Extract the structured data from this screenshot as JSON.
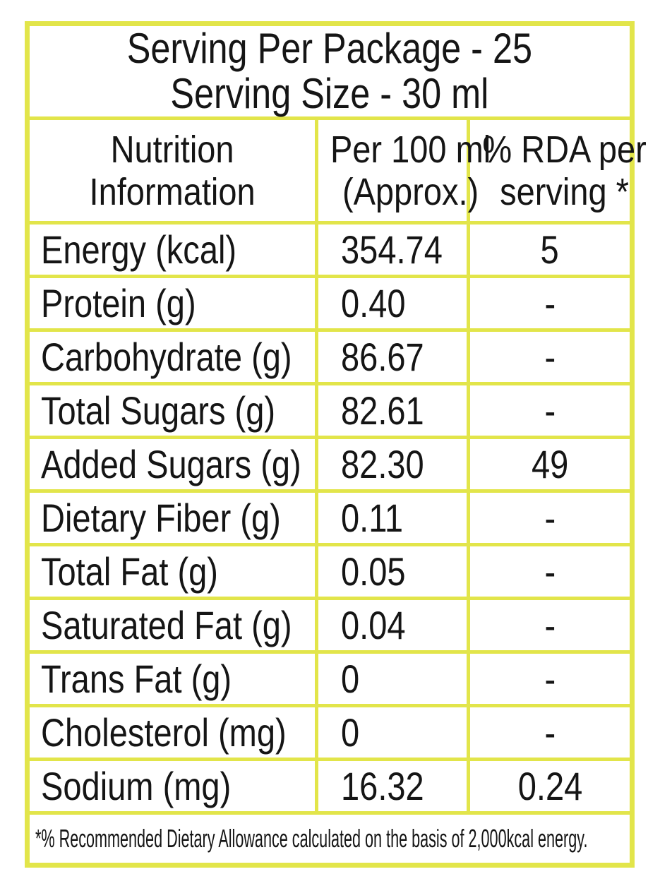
{
  "colors": {
    "border": "#e2e54a",
    "text": "#151515",
    "background": "#ffffff"
  },
  "title": {
    "line1": "Serving Per Package - 25",
    "line2": "Serving Size - 30 ml"
  },
  "columns": {
    "c1": {
      "line1": "Nutrition",
      "line2": "Information"
    },
    "c2": {
      "line1": "Per 100 ml",
      "line2": "(Approx.)"
    },
    "c3": {
      "line1": "% RDA per",
      "line2": "serving *"
    }
  },
  "rows": [
    {
      "label": "Energy (kcal)",
      "per_100ml": "354.74",
      "rda_percent": "5"
    },
    {
      "label": "Protein (g)",
      "per_100ml": "0.40",
      "rda_percent": "-"
    },
    {
      "label": "Carbohydrate (g)",
      "per_100ml": "86.67",
      "rda_percent": "-"
    },
    {
      "label": "Total Sugars (g)",
      "per_100ml": "82.61",
      "rda_percent": "-"
    },
    {
      "label": "Added Sugars (g)",
      "per_100ml": "82.30",
      "rda_percent": "49"
    },
    {
      "label": "Dietary Fiber (g)",
      "per_100ml": "0.11",
      "rda_percent": "-"
    },
    {
      "label": "Total Fat (g)",
      "per_100ml": "0.05",
      "rda_percent": "-"
    },
    {
      "label": "Saturated Fat (g)",
      "per_100ml": "0.04",
      "rda_percent": "-"
    },
    {
      "label": "Trans Fat (g)",
      "per_100ml": "0",
      "rda_percent": "-"
    },
    {
      "label": "Cholesterol (mg)",
      "per_100ml": "0",
      "rda_percent": "-"
    },
    {
      "label": "Sodium (mg)",
      "per_100ml": "16.32",
      "rda_percent": "0.24"
    }
  ],
  "footnote": "*% Recommended Dietary Allowance calculated on the basis of 2,000kcal energy."
}
